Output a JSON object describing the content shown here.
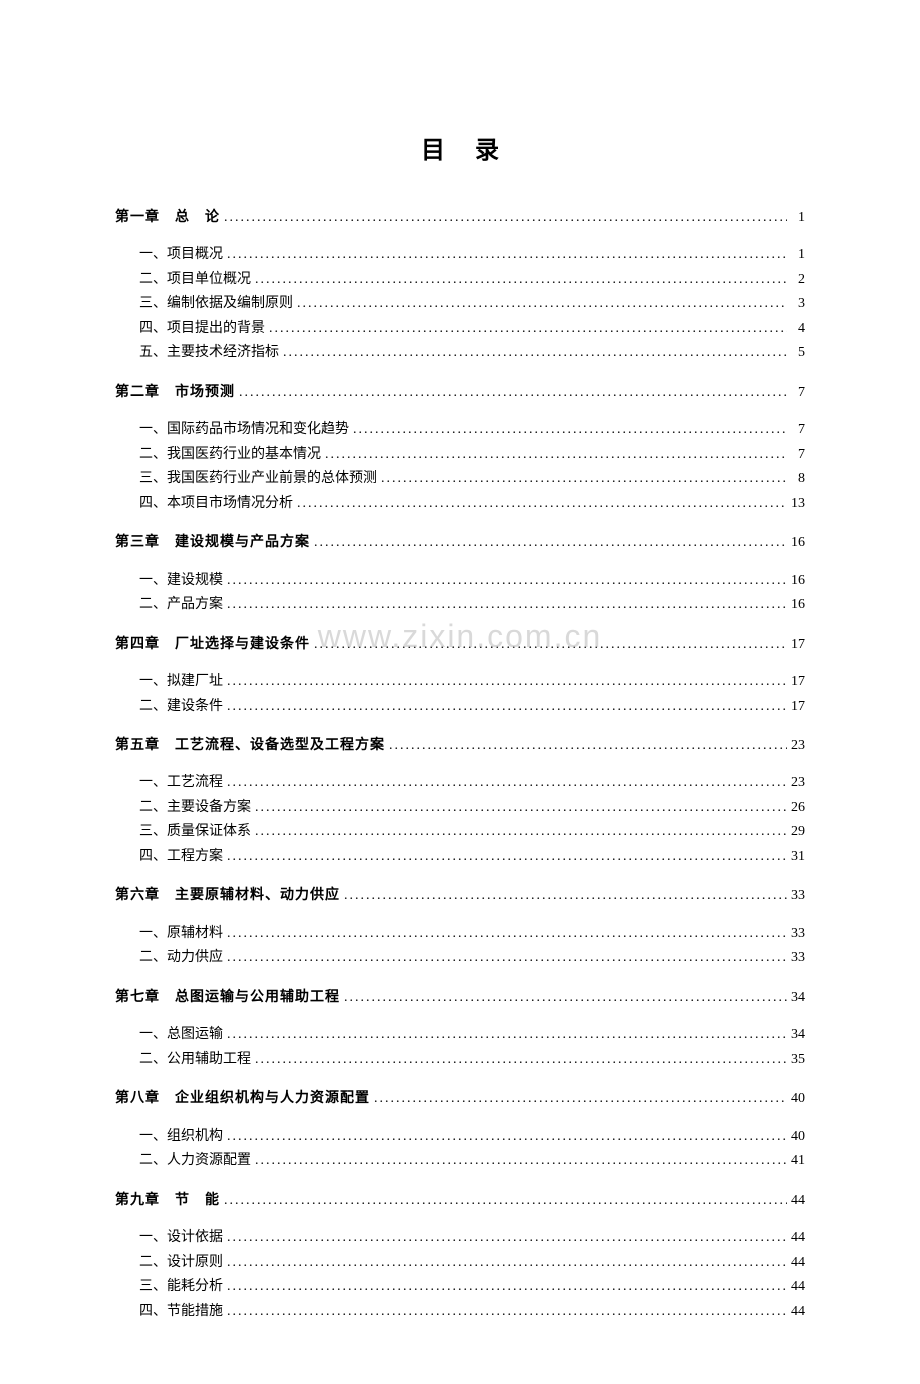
{
  "title": "目录",
  "watermark": "www.zixin.com.cn",
  "background_color": "#ffffff",
  "text_color": "#000000",
  "watermark_color": "rgba(180, 180, 180, 0.5)",
  "title_fontsize": 24,
  "chapter_fontsize": 14,
  "item_fontsize": 14,
  "chapters": [
    {
      "label": "第一章　总　论",
      "page": "1",
      "items": [
        {
          "label": "一、项目概况",
          "page": "1"
        },
        {
          "label": "二、项目单位概况",
          "page": "2"
        },
        {
          "label": "三、编制依据及编制原则",
          "page": "3"
        },
        {
          "label": "四、项目提出的背景",
          "page": "4"
        },
        {
          "label": "五、主要技术经济指标",
          "page": "5"
        }
      ]
    },
    {
      "label": "第二章　市场预测",
      "page": "7",
      "items": [
        {
          "label": "一、国际药品市场情况和变化趋势",
          "page": "7"
        },
        {
          "label": "二、我国医药行业的基本情况",
          "page": "7"
        },
        {
          "label": "三、我国医药行业产业前景的总体预测",
          "page": "8"
        },
        {
          "label": "四、本项目市场情况分析",
          "page": "13"
        }
      ]
    },
    {
      "label": "第三章　建设规模与产品方案",
      "page": "16",
      "items": [
        {
          "label": "一、建设规模",
          "page": "16"
        },
        {
          "label": "二、产品方案",
          "page": "16"
        }
      ]
    },
    {
      "label": "第四章　厂址选择与建设条件",
      "page": "17",
      "items": [
        {
          "label": "一、拟建厂址",
          "page": "17"
        },
        {
          "label": "二、建设条件",
          "page": "17"
        }
      ]
    },
    {
      "label": "第五章　工艺流程、设备选型及工程方案",
      "page": "23",
      "items": [
        {
          "label": "一、工艺流程",
          "page": "23"
        },
        {
          "label": "二、主要设备方案",
          "page": "26"
        },
        {
          "label": "三、质量保证体系",
          "page": "29"
        },
        {
          "label": "四、工程方案",
          "page": "31"
        }
      ]
    },
    {
      "label": "第六章　主要原辅材料、动力供应",
      "page": "33",
      "items": [
        {
          "label": "一、原辅材料",
          "page": "33"
        },
        {
          "label": "二、动力供应",
          "page": "33"
        }
      ]
    },
    {
      "label": "第七章　总图运输与公用辅助工程",
      "page": "34",
      "items": [
        {
          "label": "一、总图运输",
          "page": "34"
        },
        {
          "label": "二、公用辅助工程",
          "page": "35"
        }
      ]
    },
    {
      "label": "第八章　企业组织机构与人力资源配置",
      "page": "40",
      "items": [
        {
          "label": "一、组织机构",
          "page": "40"
        },
        {
          "label": "二、人力资源配置",
          "page": "41"
        }
      ]
    },
    {
      "label": "第九章　节　能",
      "page": "44",
      "items": [
        {
          "label": "一、设计依据",
          "page": "44"
        },
        {
          "label": "二、设计原则",
          "page": "44"
        },
        {
          "label": "三、能耗分析",
          "page": "44"
        },
        {
          "label": "四、节能措施",
          "page": "44"
        }
      ]
    }
  ]
}
